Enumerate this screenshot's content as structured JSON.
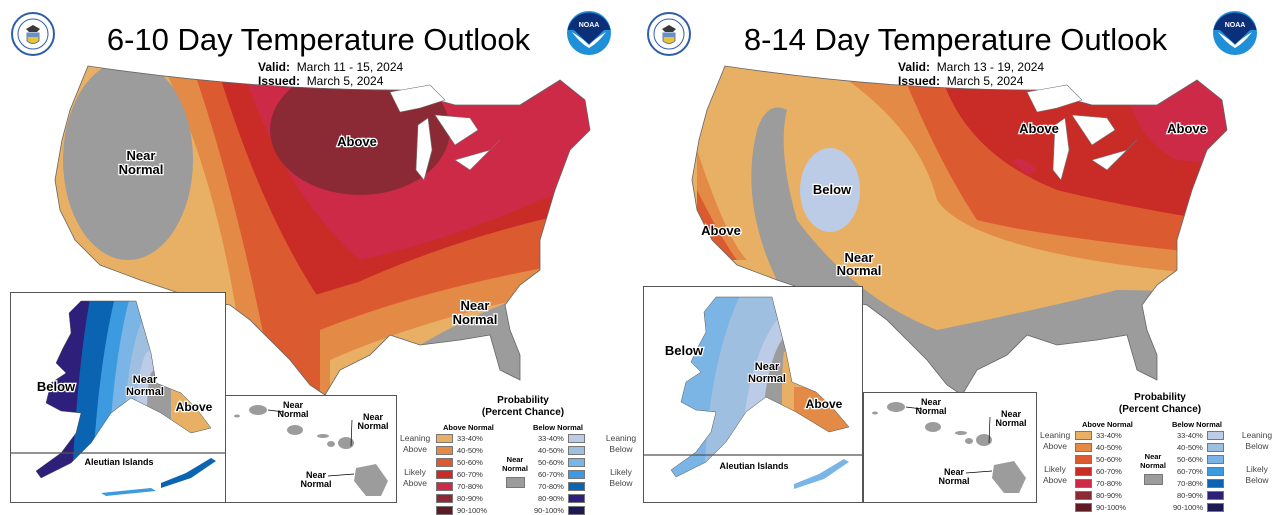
{
  "colors": {
    "above": [
      "#e8b065",
      "#e38a47",
      "#dc5a2f",
      "#c92b27",
      "#cd2a48",
      "#8b2a35",
      "#5e1b21"
    ],
    "below": [
      "#bccbe6",
      "#9ebfe0",
      "#7ab5e6",
      "#3c9be0",
      "#0a64b2",
      "#2d1f7a",
      "#1c1a55"
    ],
    "near_normal": "#9c9c9c",
    "border": "#555555"
  },
  "panels": [
    {
      "title": "6-10 Day Temperature Outlook",
      "valid_label": "Valid:",
      "valid_value": "March 11 - 15, 2024",
      "issued_label": "Issued:",
      "issued_value": "March 5, 2024",
      "logos": {
        "left": "commerce-seal",
        "right": "noaa-logo"
      },
      "noaa_text": "NOAA",
      "conus_labels": [
        "Near Normal",
        "Above",
        "Near Normal"
      ],
      "alaska_labels": [
        "Below",
        "Near Normal",
        "Above"
      ],
      "aleutian_label": "Aleutian Islands",
      "hawaii_labels": [
        "Near Normal",
        "Near Normal",
        "Near Normal"
      ]
    },
    {
      "title": "8-14 Day Temperature Outlook",
      "valid_label": "Valid:",
      "valid_value": "March 13 - 19, 2024",
      "issued_label": "Issued:",
      "issued_value": "March 5, 2024",
      "logos": {
        "left": "commerce-seal",
        "right": "noaa-logo"
      },
      "noaa_text": "NOAA",
      "conus_labels": [
        "Below",
        "Above",
        "Near Normal",
        "Above",
        "Above"
      ],
      "alaska_labels": [
        "Below",
        "Near Normal",
        "Above"
      ],
      "aleutian_label": "Aleutian Islands",
      "hawaii_labels": [
        "Near Normal",
        "Near Normal",
        "Near Normal"
      ]
    }
  ],
  "legend": {
    "title_line1": "Probability",
    "title_line2": "(Percent Chance)",
    "above_header": "Above Normal",
    "below_header": "Below Normal",
    "near_normal_line1": "Near",
    "near_normal_line2": "Normal",
    "ranges": [
      "33-40%",
      "40-50%",
      "50-60%",
      "60-70%",
      "70-80%",
      "80-90%",
      "90-100%"
    ],
    "leaning_above_1": "Leaning",
    "leaning_above_2": "Above",
    "likely_above_1": "Likely",
    "likely_above_2": "Above",
    "leaning_below_1": "Leaning",
    "leaning_below_2": "Below",
    "likely_below_1": "Likely",
    "likely_below_2": "Below"
  }
}
